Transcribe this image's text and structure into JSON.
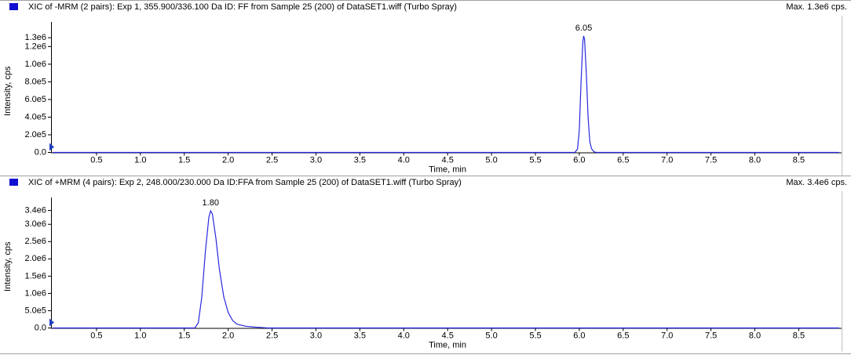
{
  "chart_data": [
    {
      "type": "line",
      "title": "XIC of -MRM (2 pairs): Exp 1, 355.900/336.100 Da ID: FF from Sample 25 (200) of DataSET1.wiff (Turbo Spray)",
      "max_label": "Max. 1.3e6 cps.",
      "x_label": "Time, min",
      "y_label": "Intensity, cps",
      "color": "#2828e0",
      "x": [
        0,
        5.95,
        5.98,
        6.0,
        6.02,
        6.04,
        6.05,
        6.06,
        6.08,
        6.1,
        6.12,
        6.14,
        6.17,
        6.2,
        8.96
      ],
      "values": [
        0,
        0,
        40000,
        250000,
        800000,
        1250000,
        1320000,
        1280000,
        900000,
        400000,
        120000,
        40000,
        5000,
        0,
        0
      ],
      "annotations": [
        {
          "text": "6.05",
          "x": 6.05,
          "y": 1320000
        }
      ],
      "xlim": [
        0,
        8.97
      ],
      "ylim": [
        0,
        1390000
      ],
      "xticks": [
        0.5,
        {
          "value": 1,
          "label": "1.0"
        },
        1.5,
        {
          "value": 2,
          "label": "2.0"
        },
        2.5,
        {
          "value": 3,
          "label": "3.0"
        },
        3.5,
        {
          "value": 4,
          "label": "4.0"
        },
        4.5,
        {
          "value": 5,
          "label": "5.0"
        },
        5.5,
        {
          "value": 6,
          "label": "6.0"
        },
        6.5,
        {
          "value": 7,
          "label": "7.0"
        },
        7.5,
        {
          "value": 8,
          "label": "8.0"
        },
        8.5
      ],
      "yticks": [
        {
          "value": 0,
          "label": "0.0"
        },
        {
          "value": 200000,
          "label": "2.0e5"
        },
        {
          "value": 400000,
          "label": "4.0e5"
        },
        {
          "value": 600000,
          "label": "6.0e5"
        },
        {
          "value": 800000,
          "label": "8.0e5"
        },
        {
          "value": 1000000,
          "label": "1.0e6"
        },
        {
          "value": 1200000,
          "label": "1.2e6"
        },
        {
          "value": 1300000,
          "label": "1.3e6"
        }
      ]
    },
    {
      "type": "line",
      "title": "XIC of +MRM (4 pairs): Exp 2, 248.000/230.000 Da ID:FFA from Sample 25 (200) of DataSET1.wiff (Turbo Spray)",
      "max_label": "Max. 3.4e6 cps.",
      "x_label": "Time, min",
      "y_label": "Intensity, cps",
      "color": "#2828e0",
      "x": [
        0,
        1.62,
        1.66,
        1.7,
        1.74,
        1.78,
        1.8,
        1.82,
        1.86,
        1.9,
        1.95,
        2.0,
        2.05,
        2.1,
        2.2,
        2.3,
        2.4,
        2.45,
        8.96
      ],
      "values": [
        0,
        0,
        150000,
        900000,
        2200000,
        3200000,
        3390000,
        3300000,
        2600000,
        1700000,
        900000,
        450000,
        220000,
        110000,
        50000,
        25000,
        10000,
        0,
        0
      ],
      "annotations": [
        {
          "text": "1.80",
          "x": 1.8,
          "y": 3390000
        }
      ],
      "xlim": [
        0,
        8.97
      ],
      "ylim": [
        0,
        3550000
      ],
      "xticks": [
        0.5,
        {
          "value": 1,
          "label": "1.0"
        },
        1.5,
        {
          "value": 2,
          "label": "2.0"
        },
        2.5,
        {
          "value": 3,
          "label": "3.0"
        },
        3.5,
        {
          "value": 4,
          "label": "4.0"
        },
        4.5,
        {
          "value": 5,
          "label": "5.0"
        },
        5.5,
        {
          "value": 6,
          "label": "6.0"
        },
        6.5,
        {
          "value": 7,
          "label": "7.0"
        },
        7.5,
        {
          "value": 8,
          "label": "8.0"
        },
        8.5
      ],
      "yticks": [
        {
          "value": 0,
          "label": "0.0"
        },
        {
          "value": 500000,
          "label": "5.0e5"
        },
        {
          "value": 1000000,
          "label": "1.0e6"
        },
        {
          "value": 1500000,
          "label": "1.5e6"
        },
        {
          "value": 2000000,
          "label": "2.0e6"
        },
        {
          "value": 2500000,
          "label": "2.5e6"
        },
        {
          "value": 3000000,
          "label": "3.0e6"
        },
        {
          "value": 3400000,
          "label": "3.4e6"
        }
      ]
    }
  ]
}
